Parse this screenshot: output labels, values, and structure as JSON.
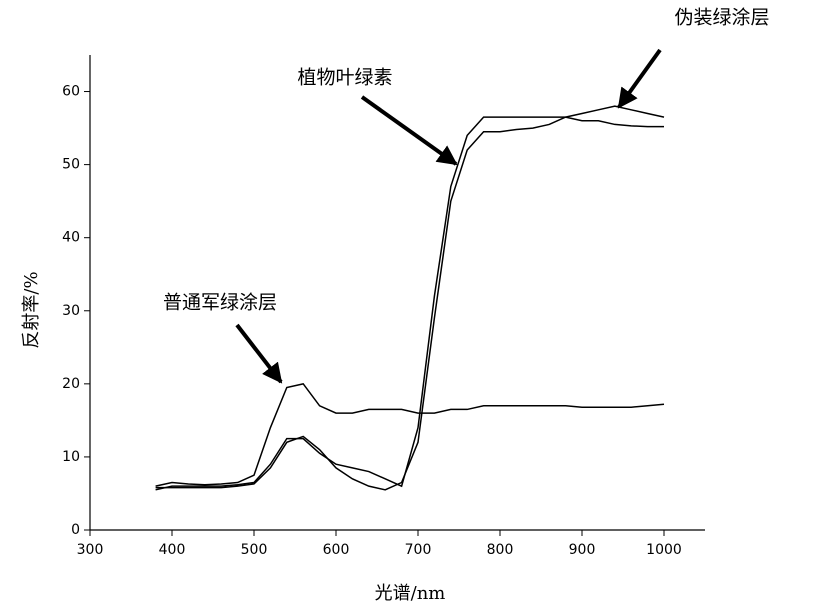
{
  "chart_data": {
    "type": "line",
    "x_label": "光谱/nm",
    "y_label": "反射率/%",
    "xlim": [
      300,
      1050
    ],
    "xticks": [
      300,
      400,
      500,
      600,
      700,
      800,
      900,
      1000
    ],
    "ylim": [
      0,
      65
    ],
    "yticks": [
      0,
      10,
      20,
      30,
      40,
      50,
      60
    ],
    "x": [
      380,
      400,
      420,
      440,
      460,
      480,
      500,
      520,
      540,
      560,
      580,
      600,
      620,
      640,
      660,
      680,
      700,
      720,
      740,
      760,
      780,
      800,
      820,
      840,
      860,
      880,
      900,
      920,
      940,
      960,
      980,
      1000
    ],
    "series": [
      {
        "name": "普通军绿涂层",
        "color": "#000000",
        "values": [
          6,
          6.5,
          6.3,
          6.2,
          6.3,
          6.5,
          7.5,
          14,
          19.5,
          20,
          17,
          16,
          16,
          16.5,
          16.5,
          16.5,
          16,
          16,
          16.5,
          16.5,
          17,
          17,
          17,
          17,
          17,
          17,
          16.8,
          16.8,
          16.8,
          16.8,
          17,
          17.2
        ]
      },
      {
        "name": "植物叶绿素",
        "color": "#000000",
        "values": [
          5.5,
          6,
          6,
          6,
          6,
          6.2,
          6.5,
          9,
          12.5,
          12.5,
          10.5,
          9,
          8.5,
          8,
          7,
          6,
          14,
          32,
          47,
          54,
          56.5,
          56.5,
          56.5,
          56.5,
          56.5,
          56.5,
          56,
          56,
          55.5,
          55.3,
          55.2,
          55.2
        ]
      },
      {
        "name": "伪装绿涂层",
        "color": "#000000",
        "values": [
          5.8,
          5.8,
          5.8,
          5.8,
          5.8,
          6,
          6.3,
          8.5,
          12,
          12.8,
          11,
          8.5,
          7,
          6,
          5.5,
          6.5,
          12,
          29,
          45,
          52,
          54.5,
          54.5,
          54.8,
          55,
          55.5,
          56.5,
          57,
          57.5,
          58,
          57.5,
          57,
          56.5
        ]
      }
    ]
  }
}
